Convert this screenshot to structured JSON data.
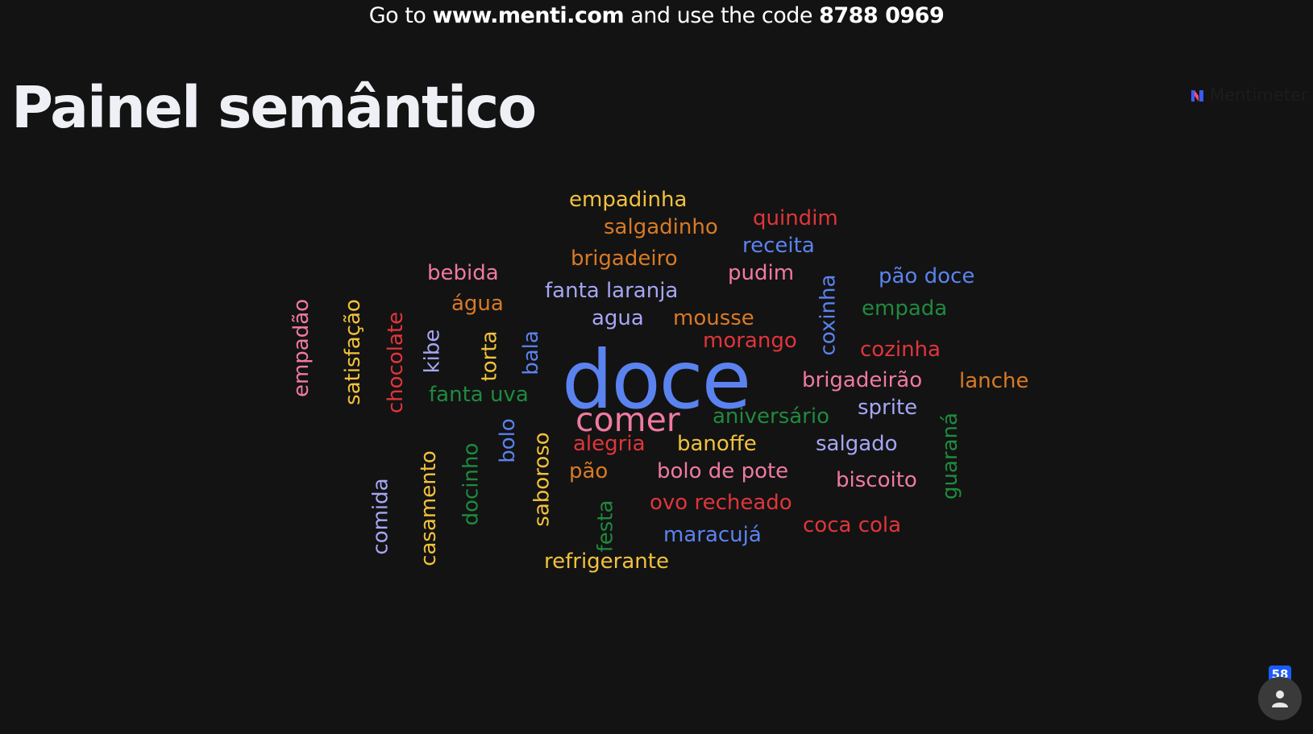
{
  "instructions": {
    "prefix": "Go to",
    "url": "www.menti.com",
    "middle": "and use the code",
    "code": "8788 0969"
  },
  "slide": {
    "title": "Painel semântico"
  },
  "brand": {
    "name": "Mentimeter",
    "icon": "mentimeter-logo-icon"
  },
  "participants": {
    "count": "58",
    "icon": "person-icon"
  },
  "colors": {
    "background": "#131313",
    "blue": "#5b83f0",
    "pink": "#f07aa0",
    "orange": "#d97a25",
    "yellow": "#f2c23c",
    "red": "#e0353b",
    "green": "#1f8a3e",
    "lavender": "#a6a6f5"
  },
  "wordcloud": {
    "words": [
      {
        "text": "doce",
        "color": "blue"
      },
      {
        "text": "comer",
        "color": "pink"
      },
      {
        "text": "empadinha",
        "color": "yellow"
      },
      {
        "text": "salgadinho",
        "color": "orange"
      },
      {
        "text": "quindim",
        "color": "red"
      },
      {
        "text": "receita",
        "color": "blue"
      },
      {
        "text": "brigadeiro",
        "color": "orange"
      },
      {
        "text": "pudim",
        "color": "pink"
      },
      {
        "text": "bebida",
        "color": "pink"
      },
      {
        "text": "fanta laranja",
        "color": "lavender"
      },
      {
        "text": "pão doce",
        "color": "blue"
      },
      {
        "text": "água",
        "color": "orange"
      },
      {
        "text": "agua",
        "color": "lavender"
      },
      {
        "text": "mousse",
        "color": "orange"
      },
      {
        "text": "empada",
        "color": "green"
      },
      {
        "text": "morango",
        "color": "red"
      },
      {
        "text": "cozinha",
        "color": "red"
      },
      {
        "text": "brigadeirão",
        "color": "pink"
      },
      {
        "text": "lanche",
        "color": "orange"
      },
      {
        "text": "fanta uva",
        "color": "green"
      },
      {
        "text": "sprite",
        "color": "lavender"
      },
      {
        "text": "aniversário",
        "color": "green"
      },
      {
        "text": "alegria",
        "color": "red"
      },
      {
        "text": "banoffe",
        "color": "yellow"
      },
      {
        "text": "salgado",
        "color": "lavender"
      },
      {
        "text": "pão",
        "color": "orange"
      },
      {
        "text": "bolo de pote",
        "color": "pink"
      },
      {
        "text": "biscoito",
        "color": "pink"
      },
      {
        "text": "ovo recheado",
        "color": "red"
      },
      {
        "text": "coca cola",
        "color": "red"
      },
      {
        "text": "maracujá",
        "color": "blue"
      },
      {
        "text": "refrigerante",
        "color": "yellow"
      },
      {
        "text": "empadão",
        "color": "pink"
      },
      {
        "text": "satisfação",
        "color": "yellow"
      },
      {
        "text": "chocolate",
        "color": "red"
      },
      {
        "text": "kibe",
        "color": "lavender"
      },
      {
        "text": "torta",
        "color": "yellow"
      },
      {
        "text": "bala",
        "color": "blue"
      },
      {
        "text": "coxinha",
        "color": "blue"
      },
      {
        "text": "bolo",
        "color": "blue"
      },
      {
        "text": "saboroso",
        "color": "yellow"
      },
      {
        "text": "docinho",
        "color": "green"
      },
      {
        "text": "casamento",
        "color": "yellow"
      },
      {
        "text": "comida",
        "color": "lavender"
      },
      {
        "text": "festa",
        "color": "green"
      },
      {
        "text": "guaraná",
        "color": "green"
      }
    ]
  }
}
